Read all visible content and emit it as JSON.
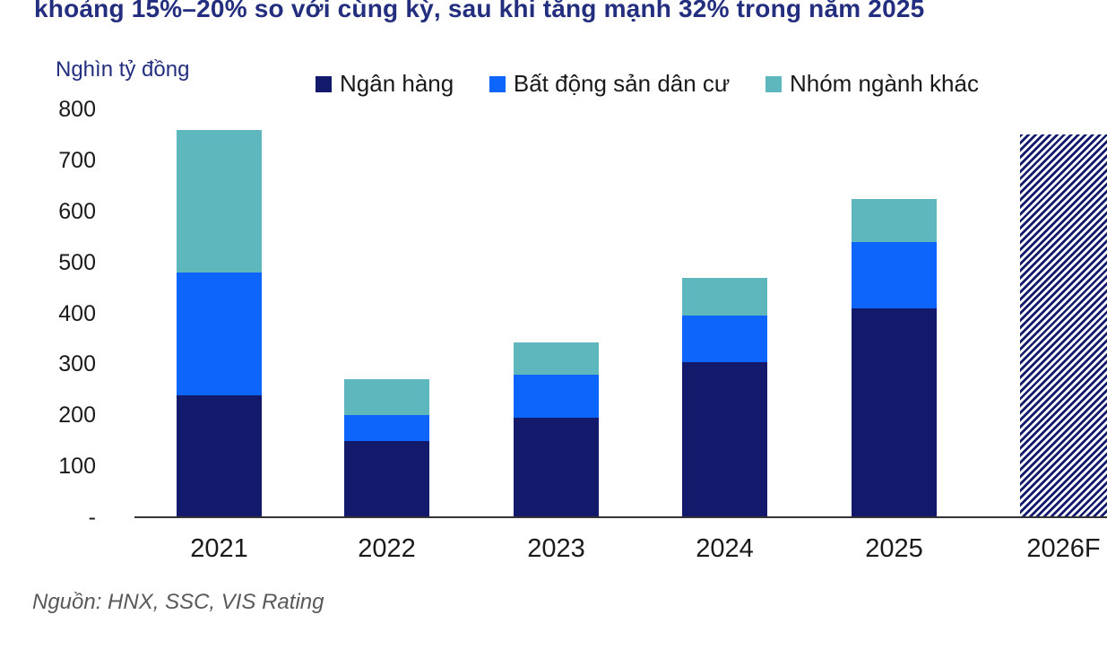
{
  "title": "khoảng 15%–20% so với cùng kỳ, sau khi tăng mạnh 32% trong năm 2025",
  "source_note": "Nguồn: HNX, SSC, VIS Rating",
  "colors": {
    "navy": "#141a6b",
    "blue": "#0e65fc",
    "teal": "#5fb7be",
    "title_text": "#232e7e",
    "axis_text": "#1a1a1a",
    "source_text": "#595959",
    "axis_line": "#333333",
    "background": "#ffffff"
  },
  "chart_data": {
    "type": "bar",
    "stacked": true,
    "title": "khoảng 15%–20% so với cùng kỳ, sau khi tăng mạnh 32% trong năm 2025",
    "unit_label": "Nghìn tỷ đồng",
    "ylabel": "Nghìn tỷ đồng",
    "xlabel": "",
    "categories": [
      "2021",
      "2022",
      "2023",
      "2024",
      "2025",
      "2026F"
    ],
    "series": [
      {
        "name": "Ngân hàng",
        "color_key": "navy",
        "values": [
          240,
          150,
          195,
          305,
          410,
          null
        ]
      },
      {
        "name": "Bất động sản dân cư",
        "color_key": "blue",
        "values": [
          240,
          50,
          85,
          90,
          130,
          null
        ]
      },
      {
        "name": "Nhóm ngành khác",
        "color_key": "teal",
        "values": [
          280,
          70,
          63,
          75,
          85,
          null
        ]
      }
    ],
    "forecast_bar": {
      "category": "2026F",
      "total": 750,
      "style": "diagonal-hatch",
      "color_key": "navy"
    },
    "totals": [
      760,
      270,
      343,
      470,
      625,
      750
    ],
    "ylim": [
      0,
      800
    ],
    "ytick_step": 100,
    "ytick_labels": [
      "800",
      "700",
      "600",
      "500",
      "400",
      "300",
      "200",
      "100",
      "-"
    ],
    "legend_position": "top",
    "grid": false
  }
}
